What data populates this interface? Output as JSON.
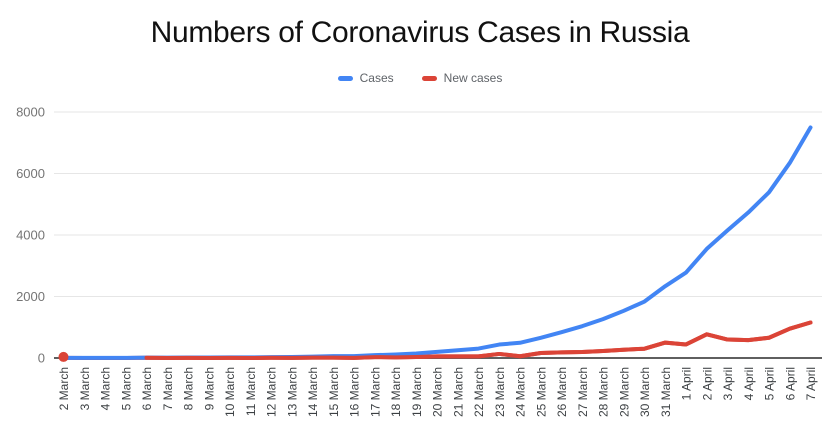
{
  "chart_data": {
    "type": "line",
    "title": "Numbers of Coronavirus Cases in Russia",
    "categories": [
      "2 March",
      "3 March",
      "4 March",
      "5 March",
      "6 March",
      "7 March",
      "8 March",
      "9 March",
      "10 March",
      "11 March",
      "12 March",
      "13 March",
      "14 March",
      "15 March",
      "16 March",
      "17 March",
      "18 March",
      "19 March",
      "20 March",
      "21 March",
      "22 March",
      "23 March",
      "24 March",
      "25 March",
      "26 March",
      "27 March",
      "28 March",
      "29 March",
      "30 March",
      "31 March",
      "1 April",
      "2 April",
      "3 April",
      "4 April",
      "5 April",
      "6 April",
      "7 April"
    ],
    "series": [
      {
        "name": "Cases",
        "color": "#4285F4",
        "values": [
          3,
          3,
          3,
          4,
          13,
          13,
          17,
          17,
          20,
          20,
          28,
          34,
          45,
          59,
          63,
          93,
          114,
          147,
          199,
          253,
          306,
          438,
          495,
          658,
          840,
          1036,
          1264,
          1534,
          1836,
          2337,
          2777,
          3548,
          4149,
          4731,
          5389,
          6343,
          7497
        ]
      },
      {
        "name": "New cases",
        "color": "#DB4437",
        "first_point_marker": true,
        "values": [
          3,
          0,
          0,
          1,
          9,
          0,
          4,
          0,
          3,
          0,
          8,
          6,
          11,
          14,
          4,
          30,
          21,
          33,
          52,
          54,
          53,
          132,
          57,
          163,
          182,
          196,
          228,
          270,
          302,
          501,
          440,
          771,
          601,
          582,
          658,
          954,
          1154
        ]
      }
    ],
    "ylim": [
      0,
      8000
    ],
    "yticks": [
      0,
      2000,
      4000,
      6000,
      8000
    ],
    "ytick_labels": [
      "0",
      "2000",
      "4000",
      "6000",
      "8000"
    ],
    "grid": "horizontal",
    "legend_position": "top",
    "x_tick_rotation": -90,
    "colors": {
      "background": "#ffffff",
      "title": "#111111",
      "gridline": "#e6e6e6",
      "baseline": "#5f5f5f",
      "y_label": "#757575",
      "x_label": "#3c4043",
      "legend_label": "#5f6368"
    }
  }
}
